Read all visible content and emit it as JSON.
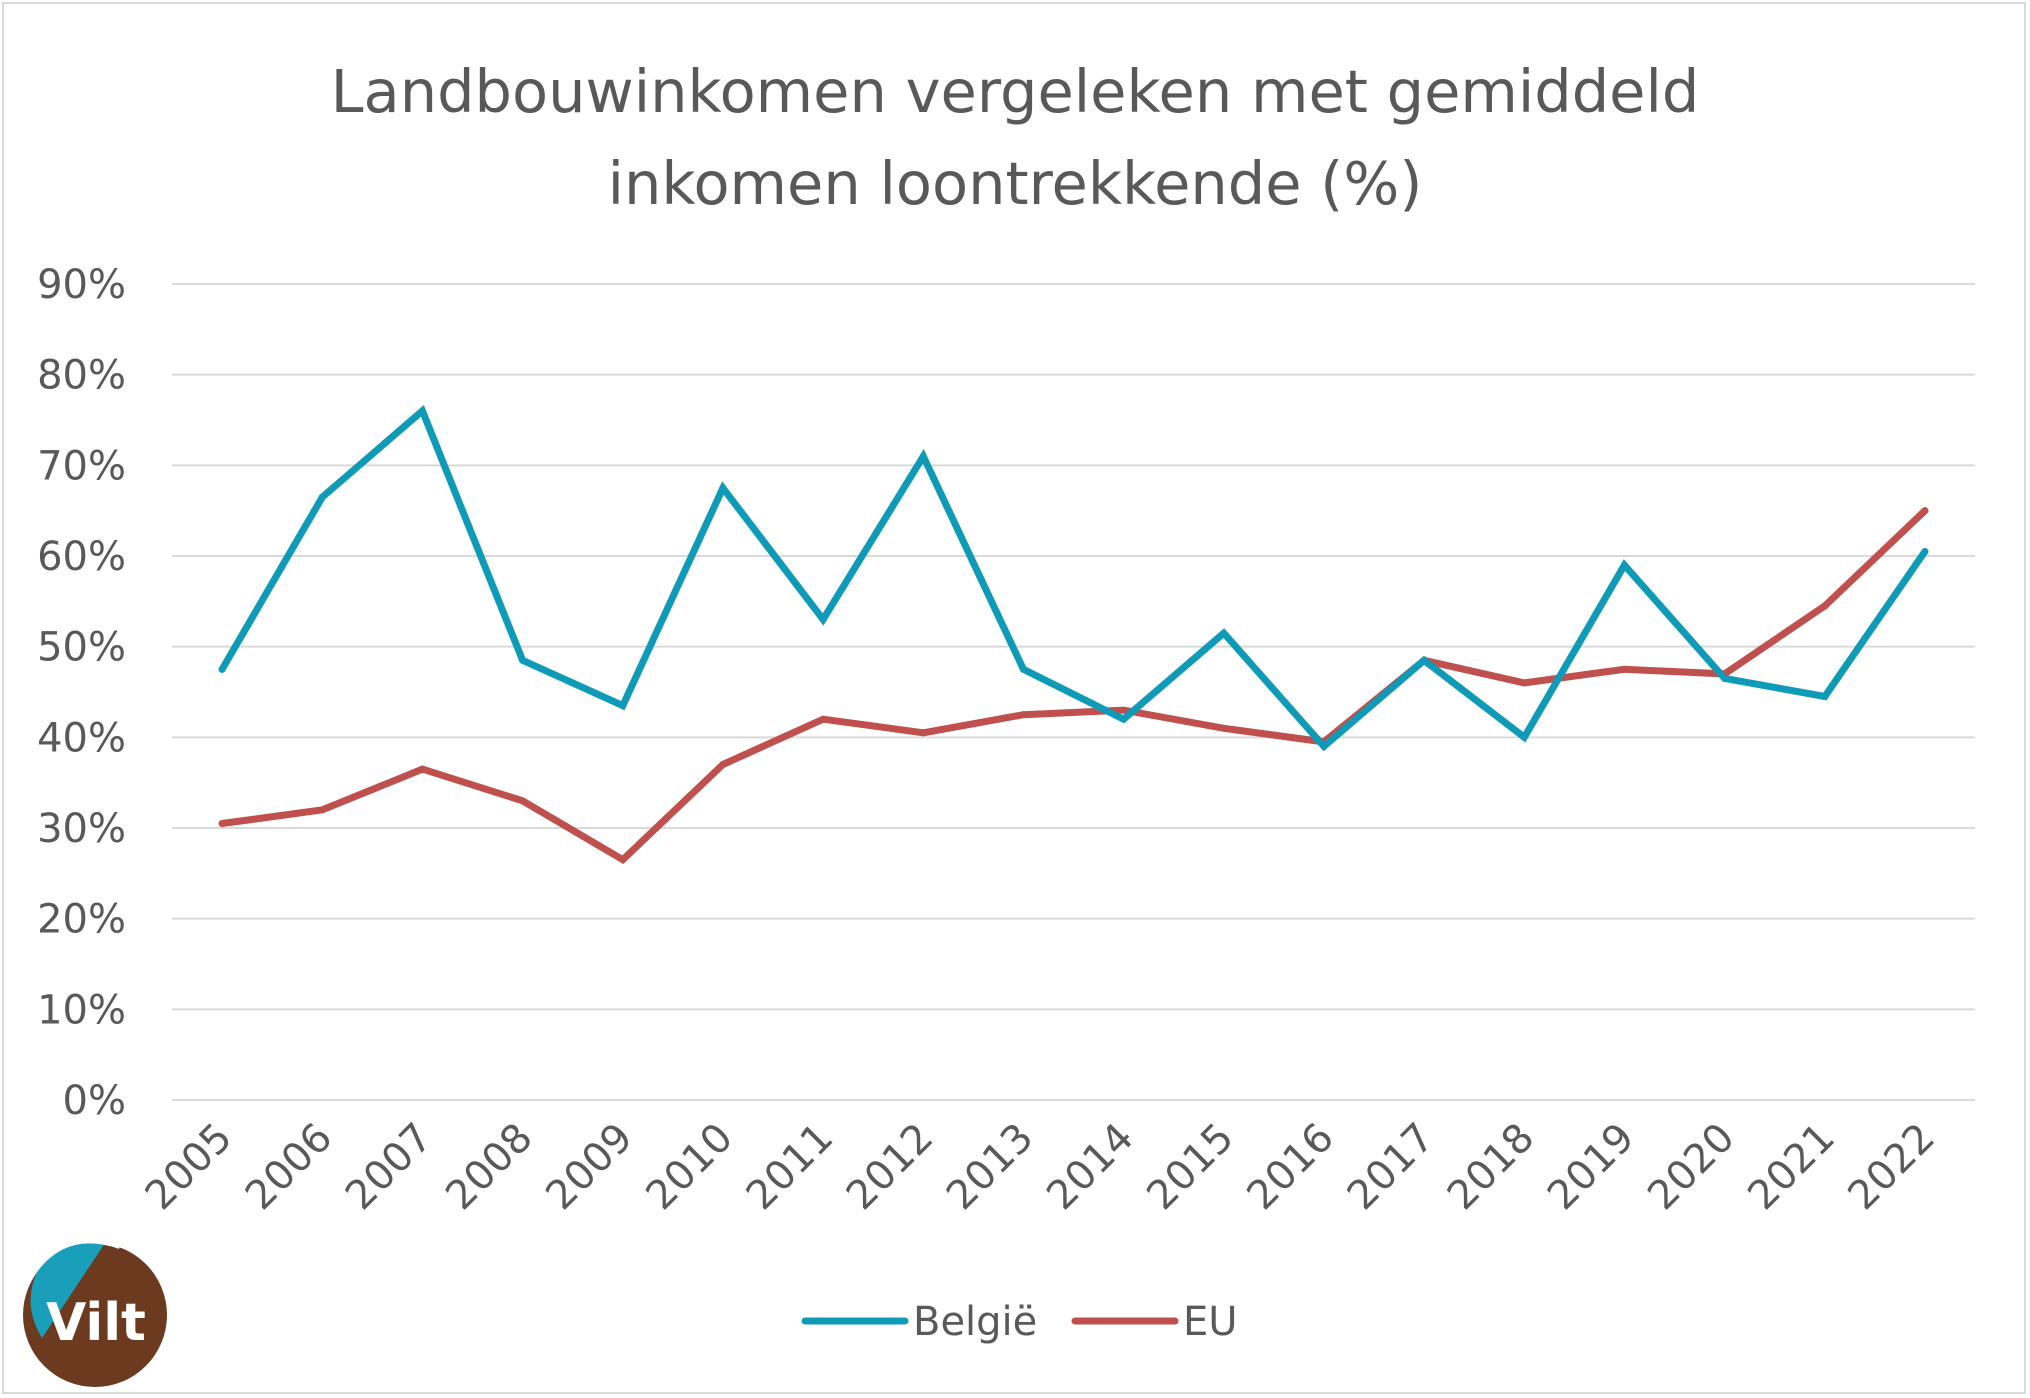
{
  "chart_data": {
    "type": "line",
    "title_lines": [
      "Landbouwinkomen vergeleken met gemiddeld",
      "inkomen loontrekkende (%)"
    ],
    "categories": [
      "2005",
      "2006",
      "2007",
      "2008",
      "2009",
      "2010",
      "2011",
      "2012",
      "2013",
      "2014",
      "2015",
      "2016",
      "2017",
      "2018",
      "2019",
      "2020",
      "2021",
      "2022"
    ],
    "series": [
      {
        "name": "België",
        "color": "#0f9bb7",
        "values": [
          47.5,
          66.5,
          76,
          48.5,
          43.5,
          67.5,
          53,
          71,
          47.5,
          42,
          51.5,
          39,
          48.5,
          40,
          59,
          46.5,
          44.5,
          60.5
        ]
      },
      {
        "name": "EU",
        "color": "#c0504d",
        "values": [
          30.5,
          32,
          36.5,
          33,
          26.5,
          37,
          42,
          40.5,
          42.5,
          43,
          41,
          39.5,
          48.5,
          46,
          47.5,
          47,
          54.5,
          65
        ]
      }
    ],
    "yticks": [
      "0%",
      "10%",
      "20%",
      "30%",
      "40%",
      "50%",
      "60%",
      "70%",
      "80%",
      "90%"
    ],
    "ylim": [
      0,
      90
    ],
    "grid": true,
    "legend_position": "bottom"
  },
  "logo": {
    "text": "Vilt",
    "colors": {
      "brown": "#6b3a1f",
      "teal": "#1a9fba"
    }
  }
}
